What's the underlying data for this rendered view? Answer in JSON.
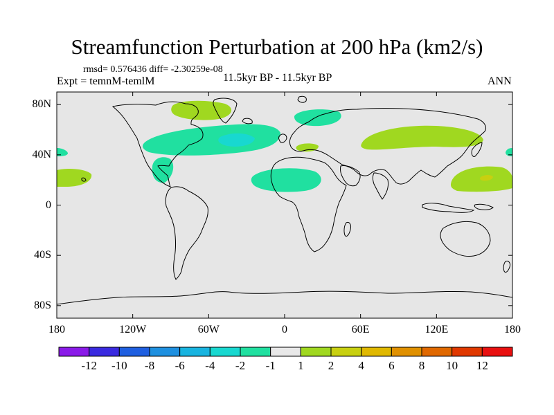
{
  "title": "Streamfunction Perturbation at 200 hPa (km2/s)",
  "stats_text": "rmsd= 0.576436 diff= -2.30259e-08",
  "experiment_text": "Expt = temnM-temlM",
  "period_text": "11.5kyr BP - 11.5kyr BP",
  "season_text": "ANN",
  "lat_ticks": [
    {
      "lat": 80,
      "label": "80N"
    },
    {
      "lat": 40,
      "label": "40N"
    },
    {
      "lat": 0,
      "label": "0"
    },
    {
      "lat": -40,
      "label": "40S"
    },
    {
      "lat": -80,
      "label": "80S"
    }
  ],
  "lon_ticks": [
    {
      "lon": -180,
      "label": "180"
    },
    {
      "lon": -120,
      "label": "120W"
    },
    {
      "lon": -60,
      "label": "60W"
    },
    {
      "lon": 0,
      "label": "0"
    },
    {
      "lon": 60,
      "label": "60E"
    },
    {
      "lon": 120,
      "label": "120E"
    },
    {
      "lon": 180,
      "label": "180"
    }
  ],
  "colorbar": {
    "colors": [
      "#8a1ae8",
      "#3a2ae0",
      "#1f5fe0",
      "#1e90e0",
      "#18b4e0",
      "#18d8d0",
      "#20e0a0",
      "#e8e8e8",
      "#a0d820",
      "#c8d010",
      "#e0b800",
      "#e09000",
      "#e06800",
      "#e03800",
      "#e81010"
    ],
    "labels": [
      "-12",
      "-10",
      "-8",
      "-6",
      "-4",
      "-2",
      "-1",
      "1",
      "2",
      "4",
      "6",
      "8",
      "10",
      "12"
    ]
  },
  "colors": {
    "background": "#e6e6e6",
    "negative_small": "#20e0a0",
    "negative_mid": "#18d8d0",
    "positive_small": "#a0d820",
    "positive_mid": "#c8d010"
  }
}
